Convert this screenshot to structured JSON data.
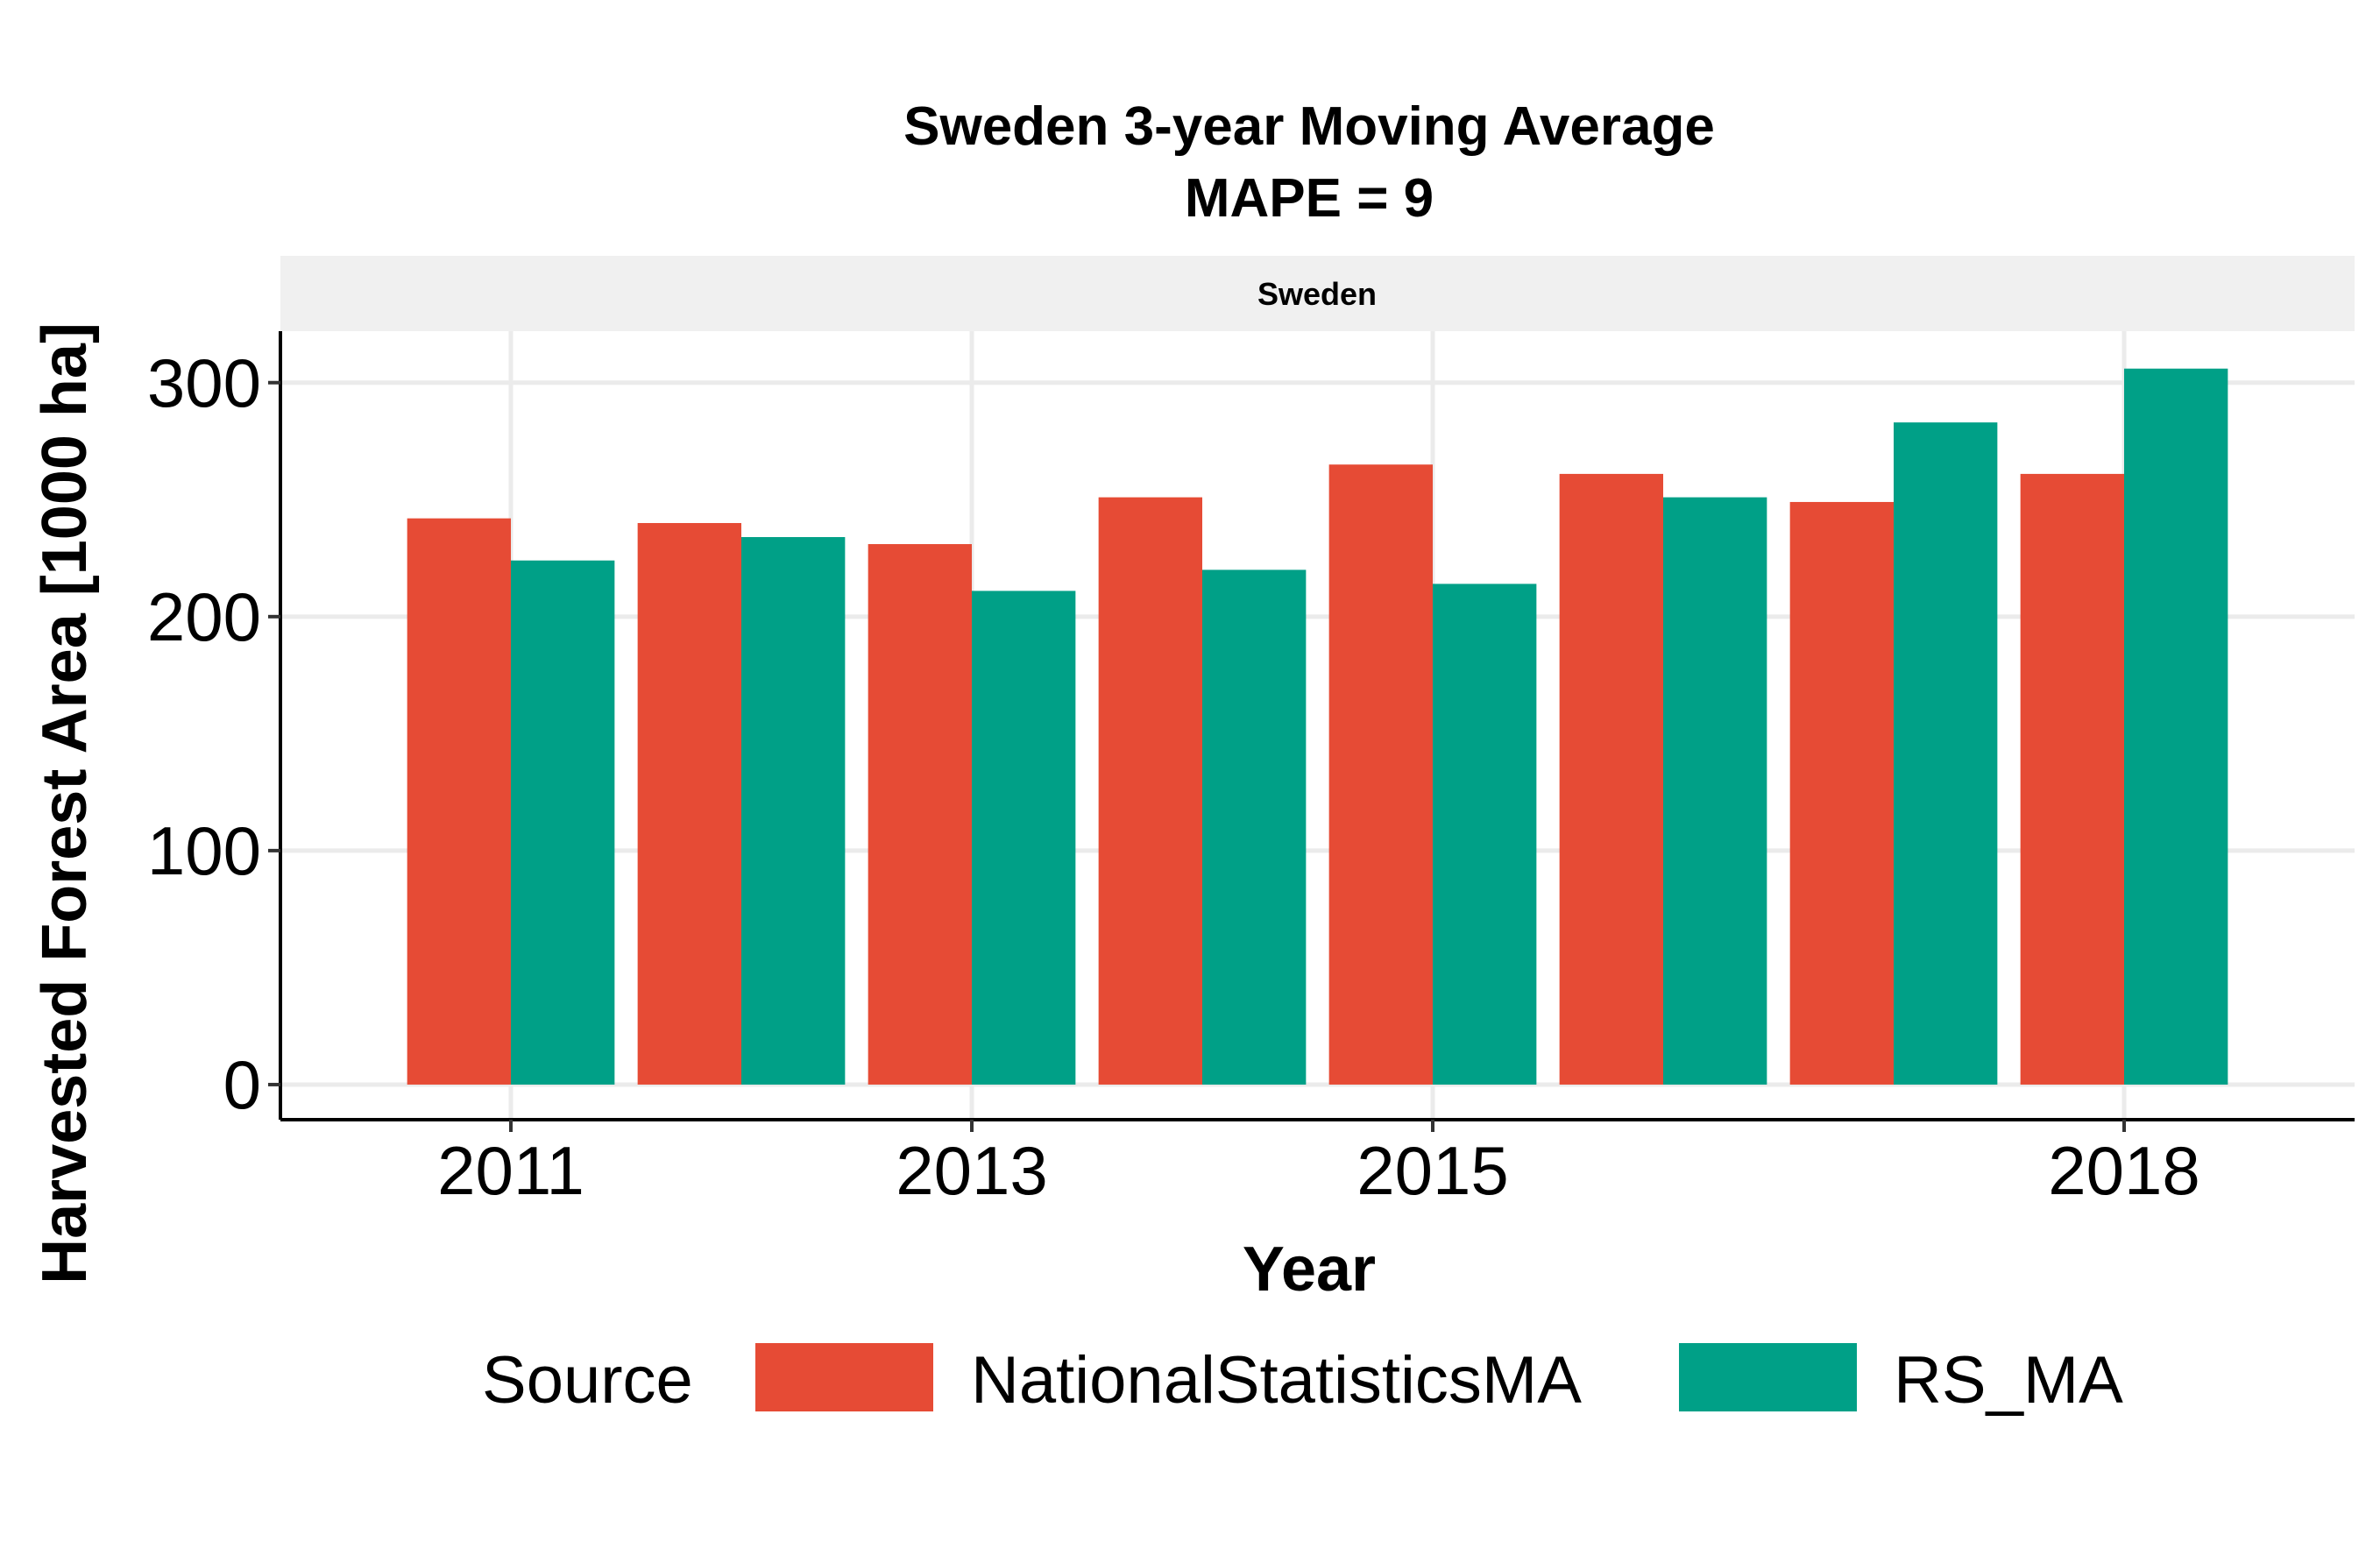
{
  "chart_data": {
    "type": "bar",
    "title": "Sweden 3-year Moving Average",
    "subtitle": "MAPE = 9",
    "facet_label": "Sweden",
    "xlabel": "Year",
    "ylabel": "Harvested Forest Area [1000 ha]",
    "x": [
      2011,
      2012,
      2013,
      2014,
      2015,
      2016,
      2017,
      2018
    ],
    "x_ticks": [
      2011,
      2013,
      2015,
      2018
    ],
    "y_ticks": [
      0,
      100,
      200,
      300
    ],
    "ylim": [
      -15,
      322
    ],
    "xlim": [
      2010,
      2019
    ],
    "grid": true,
    "legend": {
      "title": "Source",
      "position": "bottom"
    },
    "series": [
      {
        "name": "NationalStatisticsMA",
        "color": "#E64B35",
        "values": [
          242,
          240,
          231,
          251,
          265,
          261,
          249,
          261
        ]
      },
      {
        "name": "RS_MA",
        "color": "#00A087",
        "values": [
          224,
          234,
          211,
          220,
          214,
          251,
          283,
          306
        ]
      }
    ]
  }
}
